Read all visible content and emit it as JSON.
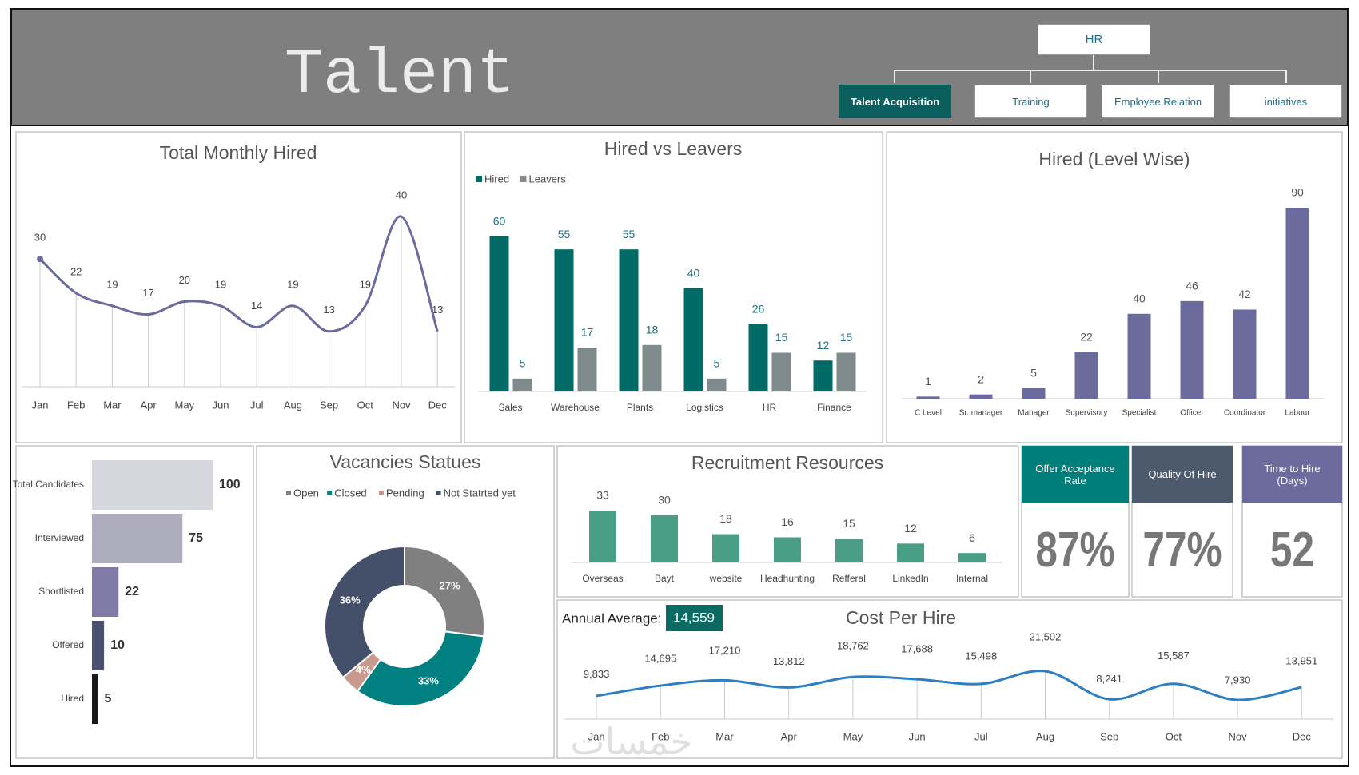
{
  "header": {
    "title": "Talent",
    "root": "HR",
    "tabs": [
      "Talent Acquisition",
      "Training",
      "Employee Relation",
      "initiatives"
    ]
  },
  "kpis": [
    {
      "title": "Offer Acceptance Rate",
      "value": "87%"
    },
    {
      "title": "Quality Of Hire",
      "value": "77%"
    },
    {
      "title": "Time to Hire (Days)",
      "value": "52"
    }
  ],
  "watermark": "خمسات",
  "chart_data": [
    {
      "type": "line",
      "title": "Total Monthly Hired",
      "categories": [
        "Jan",
        "Feb",
        "Mar",
        "Apr",
        "May",
        "Jun",
        "Jul",
        "Aug",
        "Sep",
        "Oct",
        "Nov",
        "Dec"
      ],
      "values": [
        30,
        22,
        19,
        17,
        20,
        19,
        14,
        19,
        13,
        19,
        40,
        13
      ],
      "color": "#6b6b9e"
    },
    {
      "type": "bar",
      "title": "Hired vs Leavers",
      "categories": [
        "Sales",
        "Warehouse",
        "Plants",
        "Logistics",
        "HR",
        "Finance"
      ],
      "series": [
        {
          "name": "Hired",
          "color": "#006b66",
          "values": [
            60,
            55,
            55,
            40,
            26,
            12
          ]
        },
        {
          "name": "Leavers",
          "color": "#7f8a8c",
          "values": [
            5,
            17,
            18,
            5,
            15,
            15
          ]
        }
      ]
    },
    {
      "type": "bar",
      "title": "Hired (Level Wise)",
      "categories": [
        "C Level",
        "Sr. manager",
        "Manager",
        "Supervisory",
        "Specialist",
        "Officer",
        "Coordinator",
        "Labour"
      ],
      "values": [
        1,
        2,
        5,
        22,
        40,
        46,
        42,
        90
      ],
      "color": "#6b6b9e"
    },
    {
      "type": "funnel",
      "categories": [
        "Total Candidates",
        "Interviewed",
        "Shortlisted",
        "Offered",
        "Hired"
      ],
      "values": [
        100,
        75,
        22,
        10,
        5
      ],
      "colors": [
        "#d6d6de",
        "#aeadbd",
        "#7f7ba6",
        "#4a5070",
        "#1a1a1a"
      ]
    },
    {
      "type": "donut",
      "title": "Vacancies Statues",
      "categories": [
        "Open",
        "Closed",
        "Pending",
        "Not Statrted yet"
      ],
      "values": [
        27,
        33,
        4,
        36
      ],
      "value_labels": [
        "27%",
        "33%",
        "4%",
        "36%"
      ],
      "colors": [
        "#808080",
        "#008080",
        "#c89a8e",
        "#44506a"
      ]
    },
    {
      "type": "bar",
      "title": "Recruitment Resources",
      "categories": [
        "Overseas",
        "Bayt",
        "website",
        "Headhunting",
        "Refferal",
        "LinkedIn",
        "Internal"
      ],
      "values": [
        33,
        30,
        18,
        16,
        15,
        12,
        6
      ],
      "color": "#4a9e85"
    },
    {
      "type": "line",
      "title": "Cost Per Hire",
      "categories": [
        "Jan",
        "Feb",
        "Mar",
        "Apr",
        "May",
        "Jun",
        "Jul",
        "Aug",
        "Sep",
        "Oct",
        "Nov",
        "Dec"
      ],
      "values": [
        9833,
        14695,
        17210,
        13812,
        18762,
        17688,
        15498,
        21502,
        8241,
        15587,
        7930,
        13951
      ],
      "value_labels": [
        "9,833",
        "14,695",
        "17,210",
        "13,812",
        "18,762",
        "17,688",
        "15,498",
        "21,502",
        "8,241",
        "15,587",
        "7,930",
        "13,951"
      ],
      "color": "#2e7fc1",
      "average_text": "Annual Average:",
      "average": 14559,
      "average_label": "14,559"
    }
  ]
}
